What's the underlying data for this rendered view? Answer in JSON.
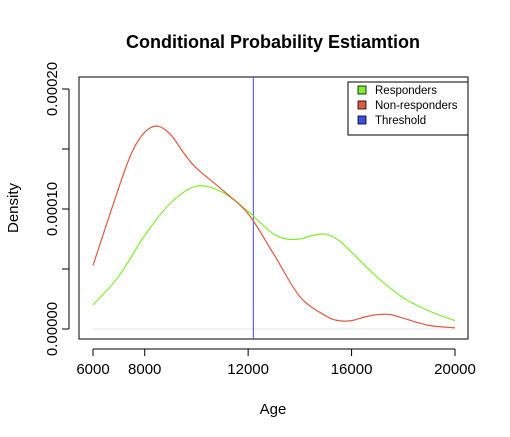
{
  "chart_data": {
    "type": "line",
    "title": "Conditional Probability Estiamtion",
    "xlabel": "Age",
    "ylabel": "Density",
    "xlim": [
      6000,
      20000
    ],
    "ylim": [
      0,
      0.0002
    ],
    "x_ticks": [
      6000,
      8000,
      12000,
      16000,
      20000
    ],
    "x_tick_labels": [
      "6000",
      "8000",
      "12000",
      "16000",
      "20000"
    ],
    "y_ticks": [
      0,
      5e-05,
      0.0001,
      0.00015,
      0.0002
    ],
    "y_tick_labels": [
      "0.00000",
      "",
      "0.00010",
      "",
      "0.00020"
    ],
    "grid": false,
    "legend_position": "top-right",
    "series": [
      {
        "name": "Responders",
        "color": "#7FEE2E",
        "x": [
          6000,
          7000,
          8000,
          9000,
          10000,
          11000,
          12000,
          12500,
          13000,
          13500,
          14000,
          14500,
          15000,
          15500,
          16000,
          17000,
          18000,
          19000,
          20000
        ],
        "y": [
          2e-05,
          4.4e-05,
          7.8e-05,
          0.000105,
          0.000119,
          0.000114,
          9.8e-05,
          8.8e-05,
          7.9e-05,
          7.5e-05,
          7.5e-05,
          7.8e-05,
          7.9e-05,
          7.4e-05,
          6.4e-05,
          4.3e-05,
          2.6e-05,
          1.5e-05,
          7e-06
        ]
      },
      {
        "name": "Non-responders",
        "color": "#E05A40",
        "x": [
          6000,
          7000,
          7500,
          8000,
          8500,
          9000,
          9500,
          10000,
          11000,
          12000,
          13000,
          14000,
          15000,
          15500,
          16000,
          16500,
          17000,
          17500,
          18000,
          19000,
          20000
        ],
        "y": [
          5.3e-05,
          0.000118,
          0.000147,
          0.000164,
          0.000169,
          0.000162,
          0.000147,
          0.000134,
          0.000116,
          9.6e-05,
          6.2e-05,
          2.7e-05,
          1.1e-05,
          7e-06,
          7e-06,
          1e-05,
          1.2e-05,
          1.2e-05,
          9e-06,
          3e-06,
          1e-06
        ]
      }
    ],
    "threshold": {
      "name": "Threshold",
      "x": 12200,
      "color": "#3A4FE0"
    },
    "legend": [
      {
        "label": "Responders",
        "color": "#7FEE2E"
      },
      {
        "label": "Non-responders",
        "color": "#E05A40"
      },
      {
        "label": "Threshold",
        "color": "#3A4FE0"
      }
    ]
  }
}
